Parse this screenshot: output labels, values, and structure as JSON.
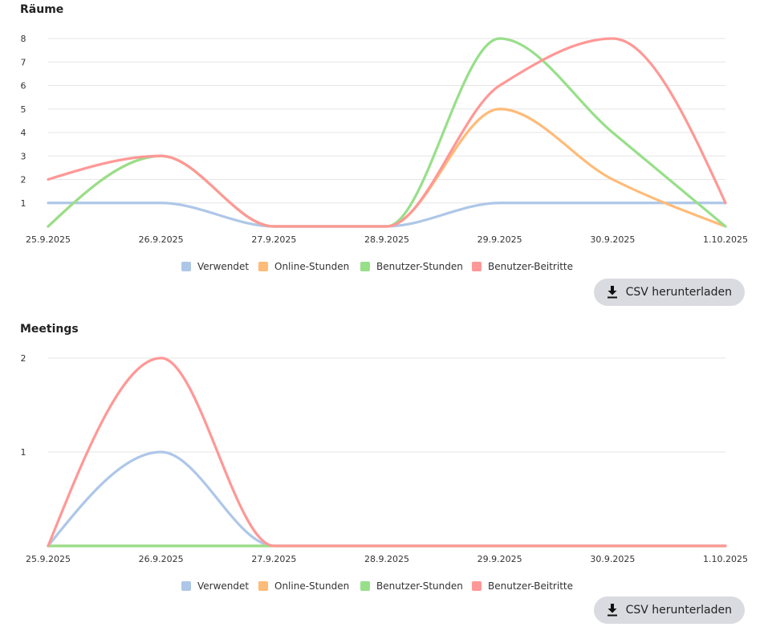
{
  "download_label": "CSV herunterladen",
  "icons": {
    "download": "download-icon"
  },
  "colors": {
    "Verwendet": "#aec7e8",
    "Online-Stunden": "#ffbb78",
    "Benutzer-Stunden": "#98df8a",
    "Benutzer-Beitritte": "#ff9896"
  },
  "chart_data": [
    {
      "title": "Räume",
      "type": "line",
      "categories": [
        "25.9.2025",
        "26.9.2025",
        "27.9.2025",
        "28.9.2025",
        "29.9.2025",
        "30.9.2025",
        "1.10.2025"
      ],
      "ylim": [
        0,
        8
      ],
      "yticks": [
        1,
        2,
        3,
        4,
        5,
        6,
        7,
        8
      ],
      "grid": true,
      "legend": "bottom",
      "series": [
        {
          "name": "Verwendet",
          "values": [
            1,
            1,
            0,
            0,
            1,
            1,
            1
          ]
        },
        {
          "name": "Online-Stunden",
          "values": [
            0,
            3,
            0,
            0,
            5,
            2,
            0
          ]
        },
        {
          "name": "Benutzer-Stunden",
          "values": [
            0,
            3,
            0,
            0,
            8,
            4,
            0
          ]
        },
        {
          "name": "Benutzer-Beitritte",
          "values": [
            2,
            3,
            0,
            0,
            6,
            8,
            1
          ]
        }
      ]
    },
    {
      "title": "Meetings",
      "type": "line",
      "categories": [
        "25.9.2025",
        "26.9.2025",
        "27.9.2025",
        "28.9.2025",
        "29.9.2025",
        "30.9.2025",
        "1.10.2025"
      ],
      "ylim": [
        0,
        2
      ],
      "yticks": [
        1,
        2
      ],
      "grid": true,
      "legend": "bottom",
      "series": [
        {
          "name": "Verwendet",
          "values": [
            0,
            1,
            0,
            0,
            0,
            0,
            0
          ]
        },
        {
          "name": "Online-Stunden",
          "values": [
            0,
            0,
            0,
            0,
            0,
            0,
            0
          ]
        },
        {
          "name": "Benutzer-Stunden",
          "values": [
            0,
            0,
            0,
            0,
            0,
            0,
            0
          ]
        },
        {
          "name": "Benutzer-Beitritte",
          "values": [
            0,
            2,
            0,
            0,
            0,
            0,
            0
          ]
        }
      ]
    }
  ]
}
